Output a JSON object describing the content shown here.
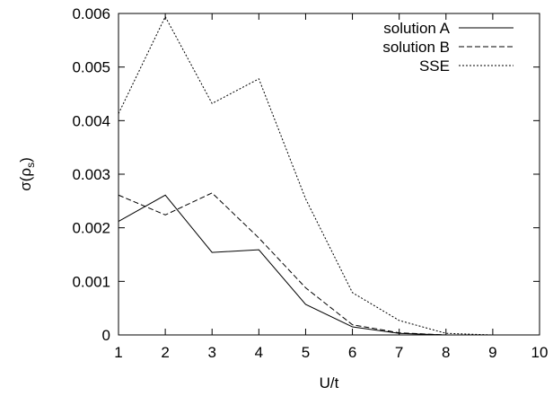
{
  "chart_data": {
    "type": "line",
    "xlabel": "U/t",
    "ylabel": "σ(ρ_s)",
    "ylabel_main": "σ(ρ",
    "ylabel_sub": "s",
    "ylabel_close": ")",
    "xlim": [
      1,
      10
    ],
    "ylim": [
      0,
      0.006
    ],
    "x_ticks": [
      1,
      2,
      3,
      4,
      5,
      6,
      7,
      8,
      9,
      10
    ],
    "x_tick_labels": [
      "1",
      "2",
      "3",
      "4",
      "5",
      "6",
      "7",
      "8",
      "9",
      "10"
    ],
    "y_ticks": [
      0,
      0.001,
      0.002,
      0.003,
      0.004,
      0.005,
      0.006
    ],
    "y_tick_labels": [
      "0",
      "0.001",
      "0.002",
      "0.003",
      "0.004",
      "0.005",
      "0.006"
    ],
    "grid": false,
    "legend_position": "top-right",
    "x": [
      1,
      2,
      3,
      4,
      5,
      6,
      7,
      8,
      9,
      10
    ],
    "series": [
      {
        "name": "solution A",
        "style": "solid",
        "values": [
          0.00212,
          0.00261,
          0.00154,
          0.00159,
          0.00057,
          0.00015,
          3e-05,
          0.0,
          0.0,
          0.0
        ]
      },
      {
        "name": "solution B",
        "style": "dashed",
        "values": [
          0.00261,
          0.00224,
          0.00265,
          0.00181,
          0.00088,
          0.00019,
          4e-05,
          0.0,
          0.0,
          0.0
        ]
      },
      {
        "name": "SSE",
        "style": "dotted",
        "values": [
          0.00413,
          0.00594,
          0.00432,
          0.00478,
          0.00254,
          0.00079,
          0.00027,
          3e-05,
          0.0,
          0.0
        ]
      }
    ]
  }
}
